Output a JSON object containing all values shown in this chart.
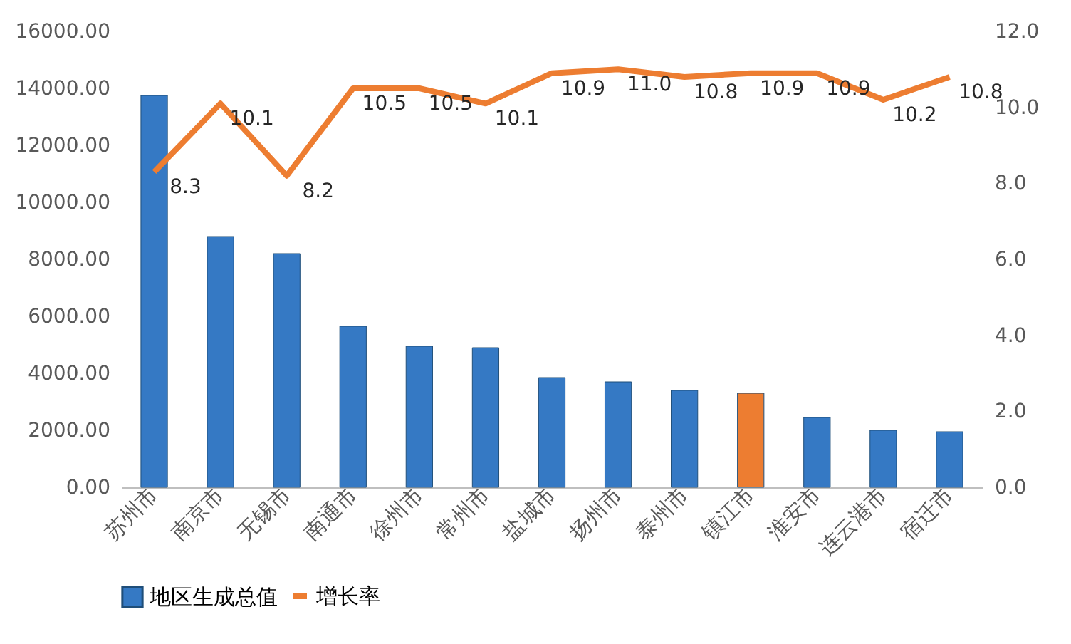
{
  "chart_data": {
    "type": "bar",
    "categories": [
      "苏州市",
      "南京市",
      "无锡市",
      "南通市",
      "徐州市",
      "常州市",
      "盐城市",
      "扬州市",
      "泰州市",
      "镇江市",
      "淮安市",
      "连云港市",
      "宿迁市"
    ],
    "series": [
      {
        "name": "地区生成总值",
        "color": "#3579c4",
        "colors": [
          "#3579c4",
          "#3579c4",
          "#3579c4",
          "#3579c4",
          "#3579c4",
          "#3579c4",
          "#3579c4",
          "#3579c4",
          "#3579c4",
          "#ed7d31",
          "#3579c4",
          "#3579c4",
          "#3579c4"
        ],
        "values": [
          13750,
          8800,
          8200,
          5650,
          4950,
          4900,
          3850,
          3700,
          3400,
          3300,
          2450,
          2000,
          1950
        ]
      },
      {
        "name": "增长率",
        "type": "line",
        "axis": "y2",
        "color": "#ed7d31",
        "values": [
          8.3,
          10.1,
          8.2,
          10.5,
          10.5,
          10.1,
          10.9,
          11.0,
          10.8,
          10.9,
          10.9,
          10.2,
          10.8
        ],
        "value_labels": [
          "8.3",
          "10.1",
          "8.2",
          "10.5",
          "10.5",
          "10.1",
          "10.9",
          "11.0",
          "10.8",
          "10.9",
          "10.9",
          "10.2",
          "10.8"
        ]
      }
    ],
    "ylim": [
      0,
      16000
    ],
    "yticks": [
      {
        "value": 0,
        "label": "0.00"
      },
      {
        "value": 2000,
        "label": "2000.00"
      },
      {
        "value": 4000,
        "label": "4000.00"
      },
      {
        "value": 6000,
        "label": "6000.00"
      },
      {
        "value": 8000,
        "label": "8000.00"
      },
      {
        "value": 10000,
        "label": "10000.00"
      },
      {
        "value": 12000,
        "label": "12000.00"
      },
      {
        "value": 14000,
        "label": "14000.00"
      },
      {
        "value": 16000,
        "label": "16000.00"
      }
    ],
    "y2lim": [
      0,
      12
    ],
    "y2ticks": [
      {
        "value": 0,
        "label": "0.0"
      },
      {
        "value": 2,
        "label": "2.0"
      },
      {
        "value": 4,
        "label": "4.0"
      },
      {
        "value": 6,
        "label": "6.0"
      },
      {
        "value": 8,
        "label": "8.0"
      },
      {
        "value": 10,
        "label": "10.0"
      },
      {
        "value": 12,
        "label": "12.0"
      }
    ],
    "grid": false,
    "legend": "bottom"
  }
}
